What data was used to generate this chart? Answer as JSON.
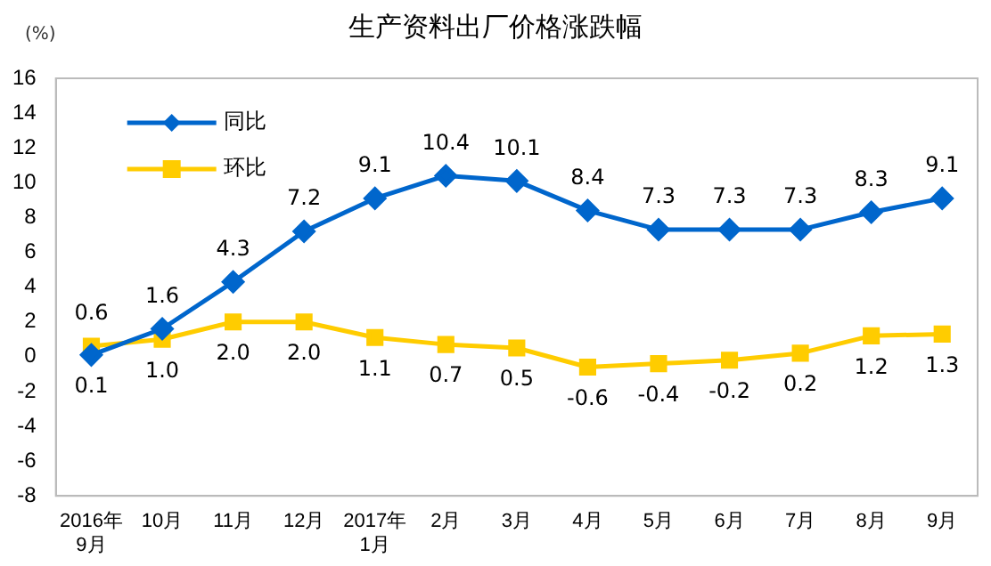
{
  "chart_data": {
    "type": "line",
    "title": "生产资料出厂价格涨跌幅",
    "ylabel": "(%)",
    "categories": [
      "2016年\n9月",
      "10月",
      "11月",
      "12月",
      "2017年\n1月",
      "2月",
      "3月",
      "4月",
      "5月",
      "6月",
      "7月",
      "8月",
      "9月"
    ],
    "series": [
      {
        "name": "同比",
        "color": "#0066cc",
        "marker": "diamond",
        "values": [
          0.1,
          1.6,
          4.3,
          7.2,
          9.1,
          10.4,
          10.1,
          8.4,
          7.3,
          7.3,
          7.3,
          8.3,
          9.1
        ],
        "value_labels": [
          "0.1",
          "1.6",
          "4.3",
          "7.2",
          "9.1",
          "10.4",
          "10.1",
          "8.4",
          "7.3",
          "7.3",
          "7.3",
          "8.3",
          "9.1"
        ]
      },
      {
        "name": "环比",
        "color": "#ffcc00",
        "marker": "square",
        "values": [
          0.6,
          1.0,
          2.0,
          2.0,
          1.1,
          0.7,
          0.5,
          -0.6,
          -0.4,
          -0.2,
          0.2,
          1.2,
          1.3
        ],
        "value_labels": [
          "0.6",
          "1.0",
          "2.0",
          "2.0",
          "1.1",
          "0.7",
          "0.5",
          "-0.6",
          "-0.4",
          "-0.2",
          "0.2",
          "1.2",
          "1.3"
        ]
      }
    ],
    "ylim": [
      -8,
      16
    ],
    "yticks": [
      -8,
      -6,
      -4,
      -2,
      0,
      2,
      4,
      6,
      8,
      10,
      12,
      14,
      16
    ],
    "grid": false,
    "legend": "top left"
  }
}
